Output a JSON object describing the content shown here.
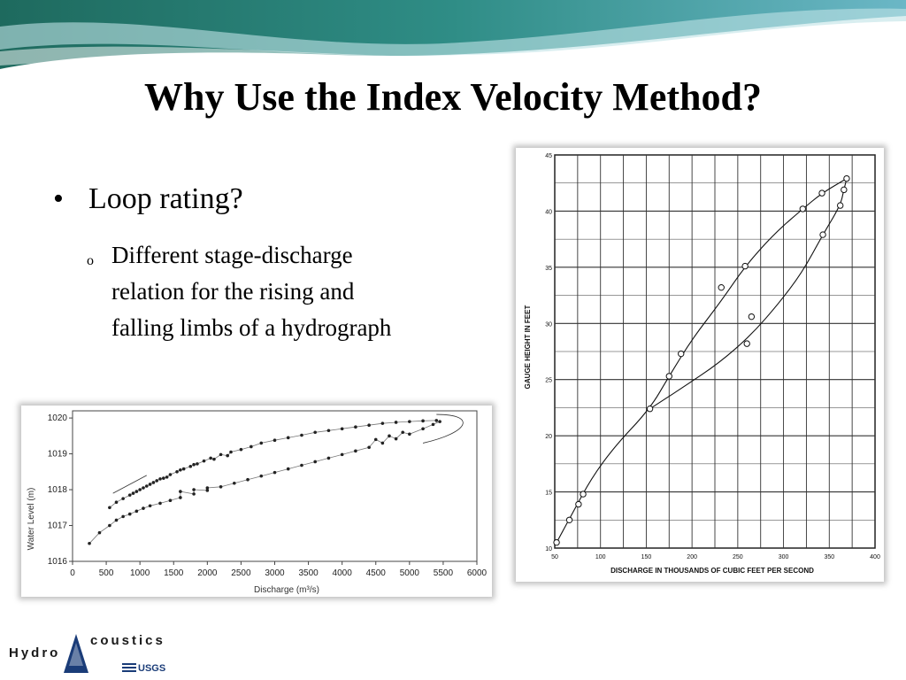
{
  "slide": {
    "title": "Why Use the Index Velocity Method?",
    "bullet": "Loop rating?",
    "sub_bullet": "Different stage-discharge relation for the rising and falling limbs of a hydrograph",
    "bullet_marker": "•",
    "sub_bullet_marker": "o"
  },
  "logo": {
    "text_left": "Hydro",
    "text_right": "coustics",
    "sub_text": "USGS"
  },
  "chart_data": [
    {
      "type": "scatter",
      "xlabel": "Discharge (m³/s)",
      "ylabel": "Water Level (m)",
      "xlim": [
        0,
        6000
      ],
      "ylim": [
        1016,
        1020.2
      ],
      "x_ticks": [
        "0",
        "500",
        "1000",
        "1500",
        "2000",
        "2500",
        "3000",
        "3500",
        "4000",
        "4500",
        "5000",
        "5500",
        "6000"
      ],
      "y_ticks": [
        "1016",
        "1017",
        "1018",
        "1019",
        "1020"
      ],
      "grid": false,
      "series": [
        {
          "points": [
            [
              550,
              1017.5
            ],
            [
              650,
              1017.65
            ],
            [
              750,
              1017.75
            ],
            [
              850,
              1017.85
            ],
            [
              950,
              1017.95
            ],
            [
              1050,
              1018.05
            ],
            [
              1150,
              1018.15
            ],
            [
              1250,
              1018.25
            ],
            [
              1350,
              1018.32
            ],
            [
              1450,
              1018.42
            ],
            [
              1550,
              1018.5
            ],
            [
              1650,
              1018.58
            ],
            [
              1750,
              1018.65
            ],
            [
              1850,
              1018.72
            ],
            [
              1950,
              1018.8
            ],
            [
              2050,
              1018.88
            ],
            [
              2200,
              1018.98
            ],
            [
              2350,
              1019.05
            ],
            [
              2500,
              1019.12
            ],
            [
              2650,
              1019.2
            ],
            [
              2800,
              1019.3
            ],
            [
              3000,
              1019.38
            ],
            [
              3200,
              1019.45
            ],
            [
              3400,
              1019.52
            ],
            [
              3600,
              1019.6
            ],
            [
              3800,
              1019.65
            ],
            [
              4000,
              1019.7
            ],
            [
              4200,
              1019.75
            ],
            [
              4400,
              1019.8
            ],
            [
              4600,
              1019.85
            ],
            [
              4800,
              1019.88
            ],
            [
              5000,
              1019.9
            ],
            [
              5200,
              1019.92
            ],
            [
              5400,
              1019.93
            ],
            [
              1100,
              1018.1
            ],
            [
              1200,
              1018.2
            ],
            [
              1300,
              1018.3
            ],
            [
              1400,
              1018.35
            ],
            [
              1600,
              1018.55
            ],
            [
              1800,
              1018.7
            ],
            [
              2100,
              1018.85
            ],
            [
              2300,
              1018.95
            ],
            [
              900,
              1017.9
            ],
            [
              1000,
              1018.0
            ]
          ]
        },
        {
          "points": [
            [
              250,
              1016.5
            ],
            [
              400,
              1016.8
            ],
            [
              550,
              1017.0
            ],
            [
              650,
              1017.15
            ],
            [
              750,
              1017.25
            ],
            [
              850,
              1017.32
            ],
            [
              950,
              1017.4
            ],
            [
              1050,
              1017.48
            ],
            [
              1150,
              1017.55
            ],
            [
              1300,
              1017.62
            ],
            [
              1450,
              1017.7
            ],
            [
              1600,
              1017.78
            ],
            [
              1800,
              1017.88
            ],
            [
              2000,
              1017.98
            ],
            [
              2200,
              1018.08
            ],
            [
              2400,
              1018.18
            ],
            [
              2600,
              1018.28
            ],
            [
              2800,
              1018.38
            ],
            [
              3000,
              1018.48
            ],
            [
              3200,
              1018.58
            ],
            [
              3400,
              1018.68
            ],
            [
              3600,
              1018.78
            ],
            [
              3800,
              1018.88
            ],
            [
              4000,
              1018.98
            ],
            [
              4200,
              1019.08
            ],
            [
              4400,
              1019.18
            ],
            [
              4600,
              1019.3
            ],
            [
              4800,
              1019.42
            ],
            [
              5000,
              1019.55
            ],
            [
              5200,
              1019.7
            ],
            [
              5350,
              1019.82
            ],
            [
              5450,
              1019.9
            ],
            [
              1600,
              1017.95
            ],
            [
              1800,
              1018.0
            ],
            [
              2000,
              1018.05
            ],
            [
              4500,
              1019.4
            ],
            [
              4700,
              1019.5
            ],
            [
              4900,
              1019.6
            ]
          ]
        }
      ]
    },
    {
      "type": "scatter",
      "xlabel": "DISCHARGE IN THOUSANDS OF CUBIC FEET PER SECOND",
      "ylabel": "GAUGE HEIGHT IN FEET",
      "xlim": [
        50,
        400
      ],
      "ylim": [
        10,
        45
      ],
      "x_ticks": [
        "50",
        "100",
        "150",
        "200",
        "250",
        "300",
        "350",
        "400"
      ],
      "y_ticks": [
        "10",
        "15",
        "20",
        "25",
        "30",
        "35",
        "40",
        "45"
      ],
      "grid": true,
      "series": [
        {
          "marker": "open-circle",
          "points": [
            [
              52,
              10.5
            ],
            [
              66,
              12.5
            ],
            [
              76,
              13.9
            ],
            [
              81,
              14.8
            ],
            [
              154,
              22.4
            ],
            [
              175,
              25.3
            ],
            [
              188,
              27.3
            ],
            [
              232,
              33.2
            ],
            [
              258,
              35.1
            ],
            [
              321,
              40.2
            ],
            [
              342,
              41.6
            ],
            [
              369,
              42.9
            ],
            [
              366,
              41.9
            ],
            [
              362,
              40.5
            ],
            [
              343,
              37.9
            ],
            [
              265,
              30.6
            ],
            [
              260,
              28.2
            ]
          ]
        }
      ],
      "curves": [
        {
          "name": "rising",
          "points": [
            [
              52,
              10.5
            ],
            [
              70,
              13.2
            ],
            [
              90,
              16.2
            ],
            [
              115,
              19.0
            ],
            [
              154,
              22.4
            ],
            [
              175,
              25.3
            ],
            [
              200,
              28.6
            ],
            [
              232,
              32.0
            ],
            [
              258,
              35.1
            ],
            [
              290,
              38.0
            ],
            [
              321,
              40.2
            ],
            [
              342,
              41.6
            ],
            [
              369,
              42.9
            ]
          ]
        },
        {
          "name": "falling",
          "points": [
            [
              369,
              42.9
            ],
            [
              366,
              41.9
            ],
            [
              362,
              40.5
            ],
            [
              343,
              37.9
            ],
            [
              320,
              34.5
            ],
            [
              295,
              31.8
            ],
            [
              265,
              29.0
            ],
            [
              230,
              26.5
            ],
            [
              190,
              24.3
            ],
            [
              154,
              22.4
            ]
          ]
        }
      ]
    }
  ]
}
